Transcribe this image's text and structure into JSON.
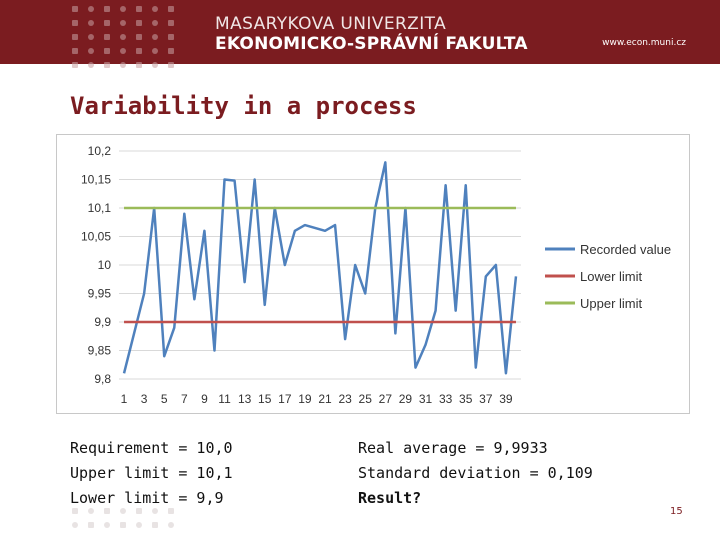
{
  "header": {
    "university_line1": "MASARYKOVA UNIVERZITA",
    "university_line2": "EKONOMICKO-SPRÁVNÍ FAKULTA",
    "url": "www.econ.muni.cz",
    "bg_color": "#7b1c20"
  },
  "slide": {
    "title": "Variability in a process",
    "page_number": "15"
  },
  "left_text": {
    "line1": "Requirement = 10,0",
    "line2": "Upper limit = 10,1",
    "line3": "Lower limit = 9,9"
  },
  "right_text": {
    "line1": "Real average = 9,9933",
    "line2": "Standard deviation = 0,109",
    "line3": "Result?"
  },
  "chart_data": {
    "type": "line",
    "x": [
      1,
      2,
      3,
      4,
      5,
      6,
      7,
      8,
      9,
      10,
      11,
      12,
      13,
      14,
      15,
      16,
      17,
      18,
      19,
      20,
      21,
      22,
      23,
      24,
      25,
      26,
      27,
      28,
      29,
      30,
      31,
      32,
      33,
      34,
      35,
      36,
      37,
      38,
      39,
      40
    ],
    "x_tick_labels": [
      "1",
      "3",
      "5",
      "7",
      "9",
      "11",
      "13",
      "15",
      "17",
      "19",
      "21",
      "23",
      "25",
      "27",
      "29",
      "31",
      "33",
      "35",
      "37",
      "39"
    ],
    "y_tick_labels": [
      "10,2",
      "10,15",
      "10,1",
      "10,05",
      "10",
      "9,95",
      "9,9",
      "9,85",
      "9,8"
    ],
    "ylim": [
      9.8,
      10.2
    ],
    "grid": true,
    "legend_position": "right",
    "series": [
      {
        "name": "Recorded value",
        "color": "#4f81bd",
        "values": [
          9.81,
          9.88,
          9.95,
          10.1,
          9.84,
          9.89,
          10.09,
          9.94,
          10.06,
          9.85,
          10.15,
          10.148,
          9.97,
          10.15,
          9.93,
          10.1,
          10.0,
          10.06,
          10.07,
          10.065,
          10.06,
          10.07,
          9.87,
          10.0,
          9.95,
          10.1,
          10.18,
          9.88,
          10.1,
          9.82,
          9.86,
          9.92,
          10.14,
          9.92,
          10.14,
          9.82,
          9.98,
          10.0,
          9.81,
          9.98
        ]
      },
      {
        "name": "Lower limit",
        "color": "#c0504d",
        "values": "constant",
        "value": 9.9
      },
      {
        "name": "Upper limit",
        "color": "#9bbb59",
        "values": "constant",
        "value": 10.1
      }
    ]
  }
}
